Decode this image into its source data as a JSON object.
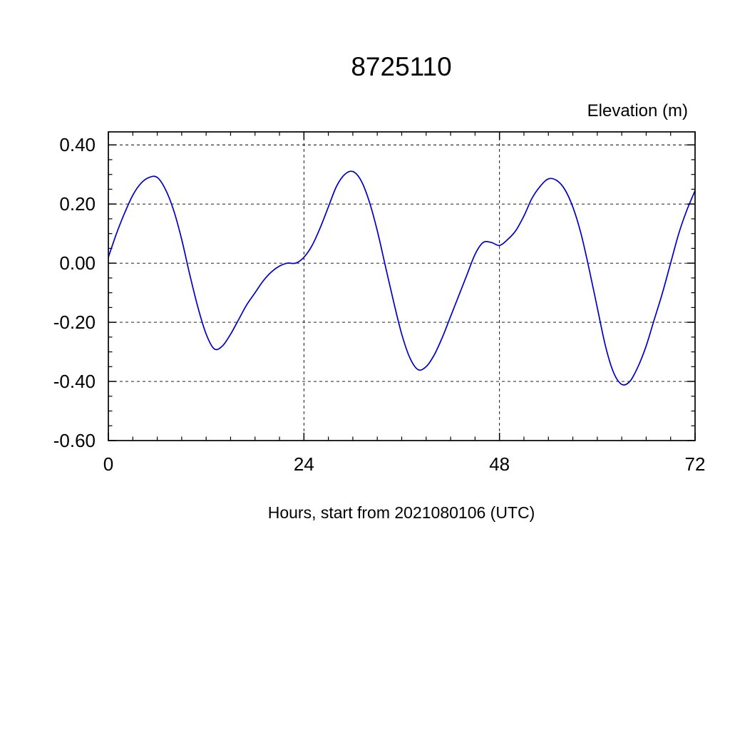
{
  "chart_data": {
    "type": "line",
    "title": "8725110",
    "ylabel": "Elevation (m)",
    "xlabel": "Hours, start from 2021080106 (UTC)",
    "line_color": "#0000cc",
    "grid": true,
    "legend_position": "none",
    "xlim": [
      0,
      72
    ],
    "ylim": [
      -0.6,
      0.444
    ],
    "xtick_values": [
      0,
      24,
      48,
      72
    ],
    "xtick_labels": [
      "0",
      "24",
      "48",
      "72"
    ],
    "ytick_values": [
      0.4,
      0.2,
      0.0,
      -0.2,
      -0.4,
      -0.6
    ],
    "ytick_labels": [
      "0.40",
      "0.20",
      "0.00",
      "-0.20",
      "-0.40",
      "-0.60"
    ],
    "x_minor_step": 3,
    "y_minor_step": 0.05,
    "x": [
      0,
      1,
      2,
      3,
      4,
      5,
      6,
      7,
      8,
      9,
      10,
      11,
      12,
      13,
      14,
      15,
      16,
      17,
      18,
      19,
      20,
      21,
      22,
      23,
      24,
      25,
      26,
      27,
      28,
      29,
      30,
      31,
      32,
      33,
      34,
      35,
      36,
      37,
      38,
      39,
      40,
      41,
      42,
      43,
      44,
      45,
      46,
      47,
      48,
      49,
      50,
      51,
      52,
      53,
      54,
      55,
      56,
      57,
      58,
      59,
      60,
      61,
      62,
      63,
      64,
      65,
      66,
      67,
      68,
      69,
      70,
      71,
      72
    ],
    "values": [
      0.02,
      0.1,
      0.17,
      0.23,
      0.27,
      0.29,
      0.29,
      0.25,
      0.18,
      0.08,
      -0.04,
      -0.15,
      -0.24,
      -0.29,
      -0.28,
      -0.24,
      -0.19,
      -0.14,
      -0.1,
      -0.06,
      -0.03,
      -0.01,
      0.0,
      0.0,
      0.02,
      0.06,
      0.12,
      0.19,
      0.26,
      0.3,
      0.31,
      0.28,
      0.21,
      0.11,
      -0.01,
      -0.13,
      -0.24,
      -0.32,
      -0.36,
      -0.35,
      -0.31,
      -0.25,
      -0.18,
      -0.11,
      -0.04,
      0.03,
      0.07,
      0.07,
      0.06,
      0.08,
      0.11,
      0.16,
      0.22,
      0.26,
      0.285,
      0.28,
      0.25,
      0.19,
      0.1,
      -0.02,
      -0.15,
      -0.28,
      -0.37,
      -0.41,
      -0.4,
      -0.35,
      -0.28,
      -0.19,
      -0.1,
      0.0,
      0.1,
      0.18,
      0.245
    ]
  }
}
